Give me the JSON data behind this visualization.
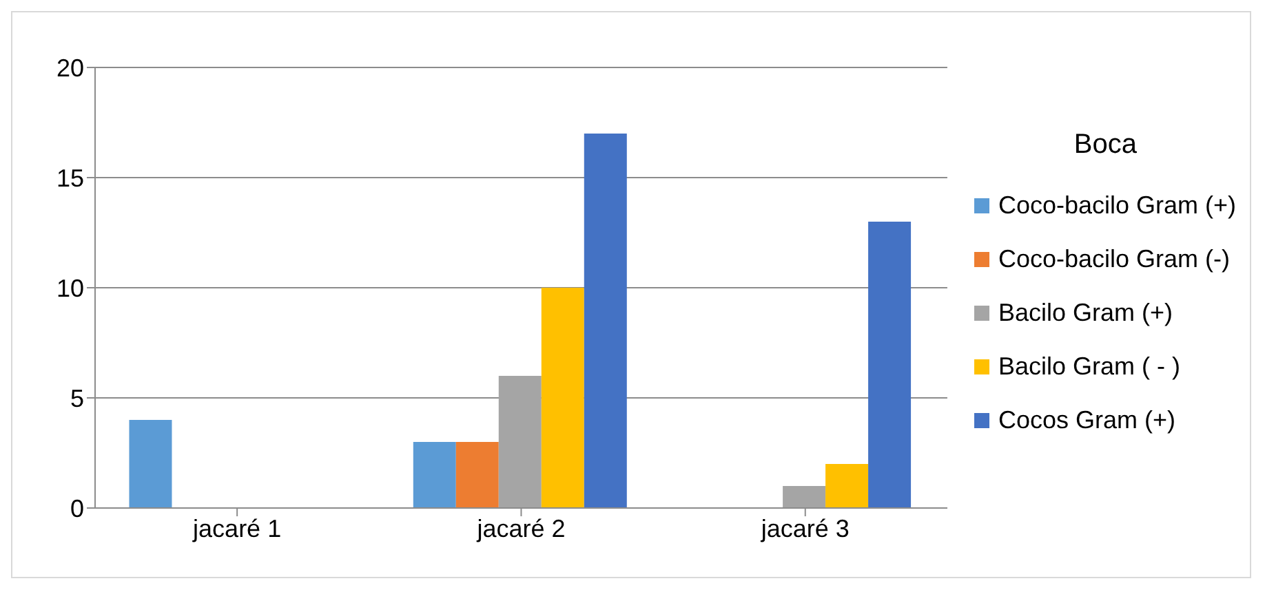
{
  "chart_data": {
    "type": "bar",
    "legend_title": "Boca",
    "categories": [
      "jacaré 1",
      "jacaré 2",
      "jacaré 3"
    ],
    "series": [
      {
        "name": "Coco-bacilo Gram (+)",
        "color": "#5b9bd5",
        "values": [
          4,
          3,
          0
        ]
      },
      {
        "name": "Coco-bacilo Gram (-)",
        "color": "#ed7d31",
        "values": [
          0,
          3,
          0
        ]
      },
      {
        "name": "Bacilo Gram (+)",
        "color": "#a5a5a5",
        "values": [
          0,
          6,
          1
        ]
      },
      {
        "name": "Bacilo Gram ( - )",
        "color": "#ffc000",
        "values": [
          0,
          10,
          2
        ]
      },
      {
        "name": "Cocos Gram (+)",
        "color": "#4472c4",
        "values": [
          0,
          17,
          13
        ]
      }
    ],
    "ylim": [
      0,
      20
    ],
    "yticks": [
      0,
      5,
      10,
      15,
      20
    ],
    "grid": "y",
    "legend": "right"
  }
}
